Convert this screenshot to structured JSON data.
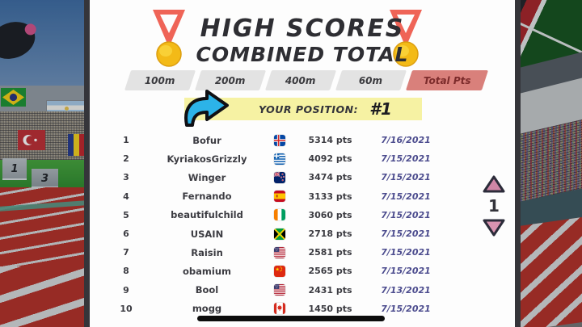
{
  "header": {
    "title": "HIGH SCORES",
    "subtitle": "COMBINED TOTAL"
  },
  "tabs": [
    {
      "label": "100m",
      "active": false
    },
    {
      "label": "200m",
      "active": false
    },
    {
      "label": "400m",
      "active": false
    },
    {
      "label": "60m",
      "active": false
    },
    {
      "label": "Total Pts",
      "active": true
    }
  ],
  "position_banner": {
    "label": "YOUR POSITION:",
    "value": "#1",
    "arrow_icon": "curved-arrow-icon"
  },
  "leaderboard": {
    "rows": [
      {
        "rank": "1",
        "name": "Bofur",
        "flag": "iceland",
        "points": "5314 pts",
        "date": "7/16/2021"
      },
      {
        "rank": "2",
        "name": "KyriakosGrizzly",
        "flag": "greece",
        "points": "4092 pts",
        "date": "7/15/2021"
      },
      {
        "rank": "3",
        "name": "Winger",
        "flag": "new-zealand",
        "points": "3474 pts",
        "date": "7/15/2021"
      },
      {
        "rank": "4",
        "name": "Fernando",
        "flag": "spain",
        "points": "3133 pts",
        "date": "7/15/2021"
      },
      {
        "rank": "5",
        "name": "beautifulchild",
        "flag": "ivory-coast",
        "points": "3060 pts",
        "date": "7/15/2021"
      },
      {
        "rank": "6",
        "name": "USAIN",
        "flag": "jamaica",
        "points": "2718 pts",
        "date": "7/15/2021"
      },
      {
        "rank": "7",
        "name": "Raisin",
        "flag": "usa",
        "points": "2581 pts",
        "date": "7/15/2021"
      },
      {
        "rank": "8",
        "name": "obamium",
        "flag": "china",
        "points": "2565 pts",
        "date": "7/15/2021"
      },
      {
        "rank": "9",
        "name": "Bool",
        "flag": "usa",
        "points": "2431 pts",
        "date": "7/13/2021"
      },
      {
        "rank": "10",
        "name": "mogg",
        "flag": "canada",
        "points": "1450 pts",
        "date": "7/15/2021"
      }
    ]
  },
  "pagination": {
    "page": "1",
    "up_icon": "up-arrow-icon",
    "down_icon": "down-arrow-icon"
  },
  "background": {
    "left_flags": [
      "brazil",
      "argentina",
      "turkey",
      "romania"
    ],
    "right_flag": "kenya",
    "podium_labels": [
      "1",
      "3"
    ]
  },
  "colors": {
    "active_tab": "#d9807b",
    "banner_yellow": "#f6f2a3",
    "date_text": "#4c4c8e",
    "arrow_blue": "#2cb3e8",
    "triangle_pink": "#cf86a6",
    "track_red": "#b5322a"
  }
}
